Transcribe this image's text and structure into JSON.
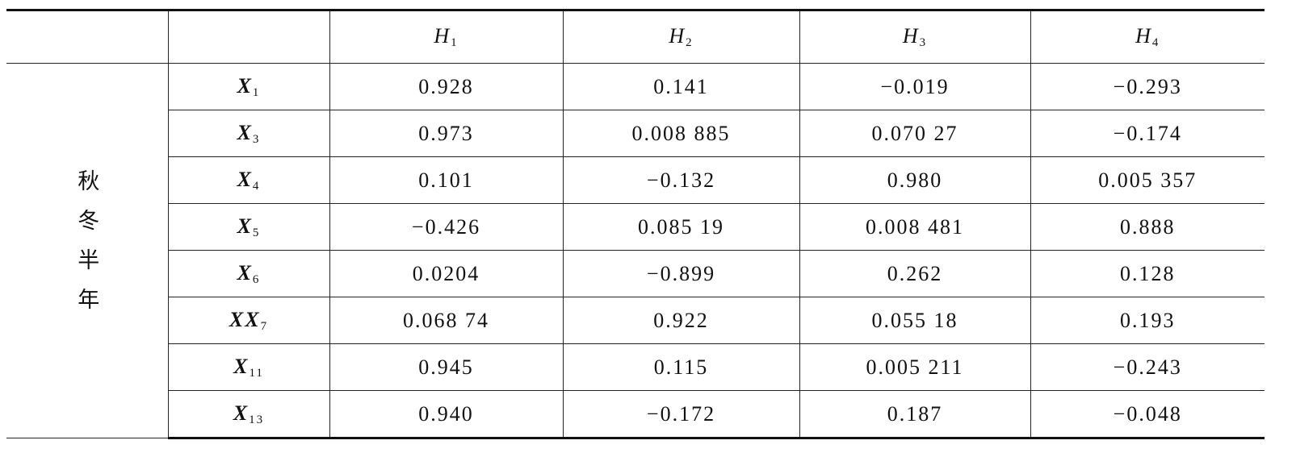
{
  "table": {
    "group": "秋冬半年",
    "header": [
      {
        "base": "H",
        "sub": "1"
      },
      {
        "base": "H",
        "sub": "2"
      },
      {
        "base": "H",
        "sub": "3"
      },
      {
        "base": "H",
        "sub": "4"
      }
    ],
    "rows": [
      {
        "label": {
          "base": "X",
          "sub": "1"
        },
        "cells": [
          "0.928",
          "0.141",
          "−0.019",
          "−0.293"
        ]
      },
      {
        "label": {
          "base": "X",
          "sub": "3"
        },
        "cells": [
          "0.973",
          "0.008 885",
          "0.070 27",
          "−0.174"
        ]
      },
      {
        "label": {
          "base": "X",
          "sub": "4"
        },
        "cells": [
          "0.101",
          "−0.132",
          "0.980",
          "0.005 357"
        ]
      },
      {
        "label": {
          "base": "X",
          "sub": "5"
        },
        "cells": [
          "−0.426",
          "0.085 19",
          "0.008 481",
          "0.888"
        ]
      },
      {
        "label": {
          "base": "X",
          "sub": "6"
        },
        "cells": [
          "0.0204",
          "−0.899",
          "0.262",
          "0.128"
        ]
      },
      {
        "label": {
          "base": "XX",
          "sub": "7"
        },
        "cells": [
          "0.068 74",
          "0.922",
          "0.055 18",
          "0.193"
        ]
      },
      {
        "label": {
          "base": "X",
          "sub": "11"
        },
        "cells": [
          "0.945",
          "0.115",
          "0.005 211",
          "−0.243"
        ]
      },
      {
        "label": {
          "base": "X",
          "sub": "13"
        },
        "cells": [
          "0.940",
          "−0.172",
          "0.187",
          "−0.048"
        ]
      }
    ]
  }
}
